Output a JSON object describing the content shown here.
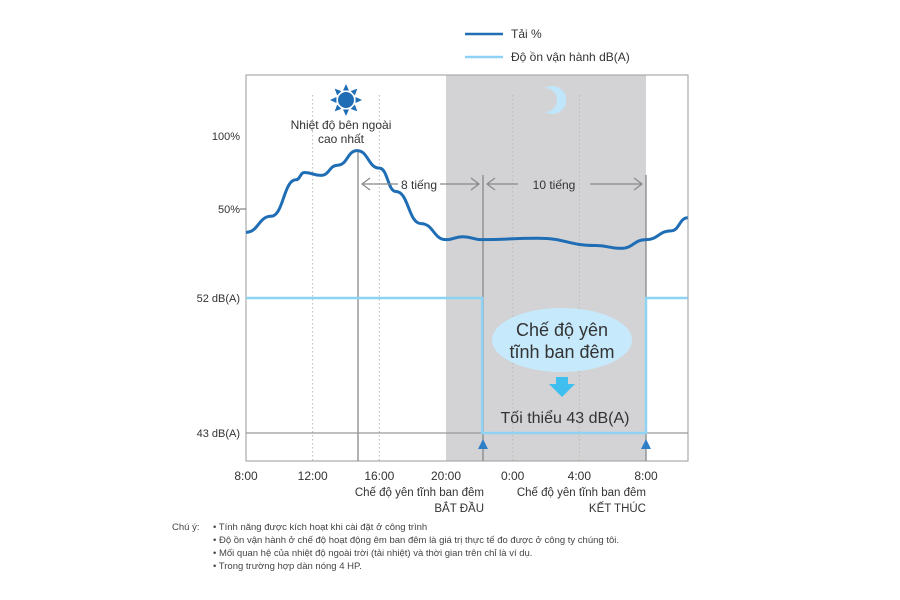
{
  "colors": {
    "load": "#1f6eb5",
    "noise": "#8fd3f4",
    "night_band": "#d3d3d5",
    "sun": "#1f6eb5",
    "moon": "#bfe6fa",
    "bubble": "#c6e9fb",
    "arrow": "#3fbfef",
    "marker": "#2f7fc8"
  },
  "chart_data": {
    "type": "line",
    "legend": [
      {
        "name": "Tải %",
        "color": "#1f6eb5"
      },
      {
        "name": "Độ ồn vận hành dB(A)",
        "color": "#8fd3f4"
      }
    ],
    "legend_position": "top-right",
    "x_ticks": [
      "8:00",
      "12:00",
      "16:00",
      "20:00",
      "0:00",
      "4:00",
      "8:00"
    ],
    "y_ticks_load": [
      "100%",
      "50%"
    ],
    "y_ticks_noise": [
      "52 dB(A)",
      "43 dB(A)"
    ],
    "series": [
      {
        "name": "Tải %",
        "unit": "%",
        "points": [
          [
            "8:00",
            34
          ],
          [
            "9:30",
            45
          ],
          [
            "11:00",
            70
          ],
          [
            "11:30",
            75
          ],
          [
            "12:30",
            73
          ],
          [
            "13:30",
            80
          ],
          [
            "14:40",
            90
          ],
          [
            "16:00",
            78
          ],
          [
            "17:00",
            62
          ],
          [
            "18:30",
            40
          ],
          [
            "20:00",
            29
          ],
          [
            "21:00",
            31
          ],
          [
            "22:10",
            29
          ],
          [
            "1:30",
            30
          ],
          [
            "5:00",
            25
          ],
          [
            "6:30",
            23
          ],
          [
            "8:00",
            29
          ],
          [
            "9:30",
            35
          ],
          [
            "10:30",
            44
          ]
        ]
      },
      {
        "name": "Độ ồn vận hành dB(A)",
        "unit": "dB(A)",
        "points": [
          [
            "8:00",
            52
          ],
          [
            "22:10",
            52
          ],
          [
            "22:10",
            43
          ],
          [
            "8:00",
            43
          ],
          [
            "8:00",
            52
          ],
          [
            "10:30",
            52
          ]
        ]
      }
    ],
    "night_band": [
      "20:00",
      "8:00"
    ],
    "annotations": {
      "peak_label": [
        "Nhiệt độ bên ngoài",
        "cao nhất"
      ],
      "interval_1": "8 tiếng",
      "interval_2": "10 tiếng",
      "bubble": [
        "Chế độ yên",
        "tĩnh ban đêm"
      ],
      "minimum": "Tối thiểu 43 dB(A)",
      "start_label": [
        "Chế độ yên tĩnh ban đêm",
        "BẮT ĐẦU"
      ],
      "end_label": [
        "Chế độ yên tĩnh ban đêm",
        "KẾT THÚC"
      ]
    }
  },
  "notes": {
    "label": "Chú ý:",
    "items": [
      "• Tính năng được kích hoạt khi cài đặt ở công trình",
      "• Độ ồn vận hành ở chế độ hoạt động êm ban đêm là giá trị thực tế đo được ở công ty chúng tôi.",
      "• Mối quan hệ của nhiệt độ ngoài trời (tải nhiệt) và thời gian trên chỉ là ví dụ.",
      "• Trong trường hợp dàn nóng 4 HP."
    ]
  }
}
